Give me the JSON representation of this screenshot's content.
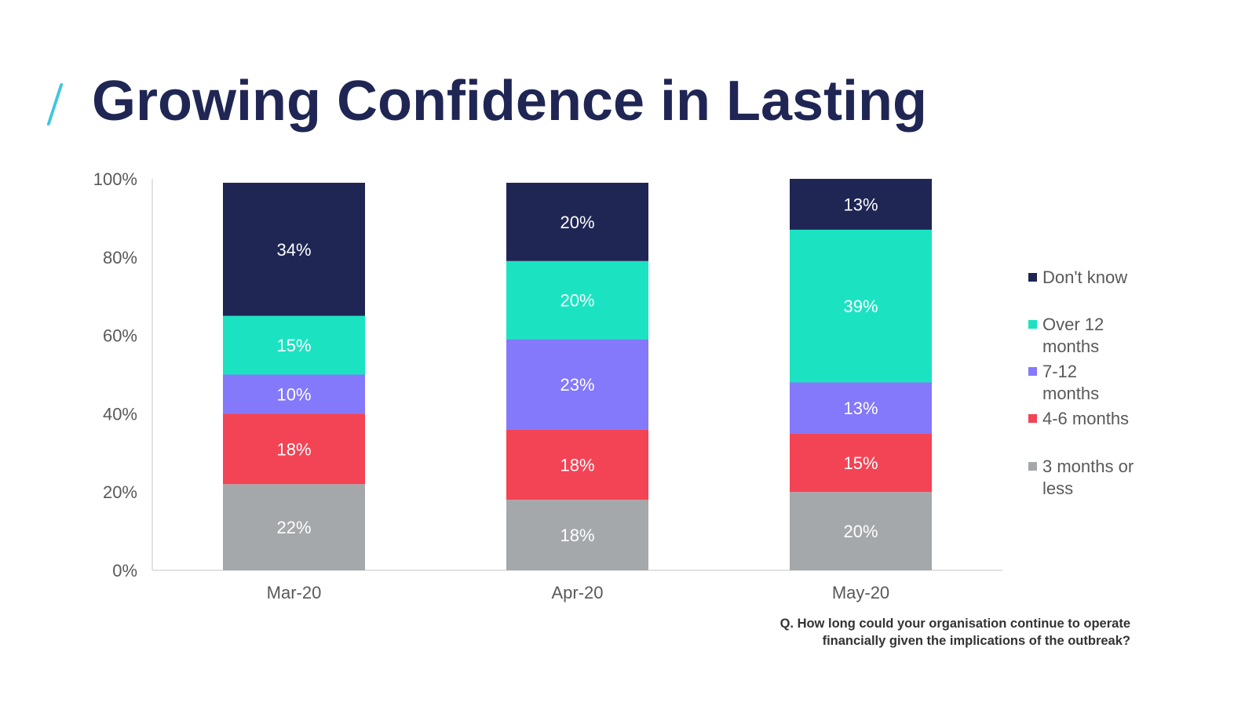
{
  "page": {
    "title": "Growing Confidence in Lasting",
    "accent_color": "#3cc6e0",
    "question_line1": "Q. How long could your organisation continue to operate",
    "question_line2": "financially given the implications of the outbreak?"
  },
  "chart_data": {
    "type": "bar",
    "stacked": true,
    "categories": [
      "Mar-20",
      "Apr-20",
      "May-20"
    ],
    "ylim": [
      0,
      100
    ],
    "yticks": [
      "0%",
      "20%",
      "40%",
      "60%",
      "80%",
      "100%"
    ],
    "grid": false,
    "legend_position": "right",
    "series": [
      {
        "name": "3 months or less",
        "color": "#a5a8ab",
        "values": [
          22,
          18,
          20
        ],
        "labels": [
          "22%",
          "18%",
          "20%"
        ]
      },
      {
        "name": "4-6 months",
        "color": "#f34455",
        "values": [
          18,
          18,
          15
        ],
        "labels": [
          "18%",
          "18%",
          "15%"
        ]
      },
      {
        "name": "7-12 months",
        "color": "#8478fb",
        "values": [
          10,
          23,
          13
        ],
        "labels": [
          "10%",
          "23%",
          "13%"
        ]
      },
      {
        "name": "Over 12 months",
        "color": "#1be3c2",
        "values": [
          15,
          20,
          39
        ],
        "labels": [
          "15%",
          "20%",
          "39%"
        ]
      },
      {
        "name": "Don't know",
        "color": "#1f2654",
        "values": [
          34,
          20,
          13
        ],
        "labels": [
          "34%",
          "20%",
          "13%"
        ]
      }
    ],
    "legend": [
      {
        "label": "Don't know",
        "color": "#1f2654"
      },
      {
        "label": "Over 12 months",
        "color": "#1be3c2"
      },
      {
        "label": "7-12 months",
        "color": "#8478fb"
      },
      {
        "label": "4-6 months",
        "color": "#f34455"
      },
      {
        "label": "3 months or less",
        "color": "#a5a8ab"
      }
    ]
  }
}
